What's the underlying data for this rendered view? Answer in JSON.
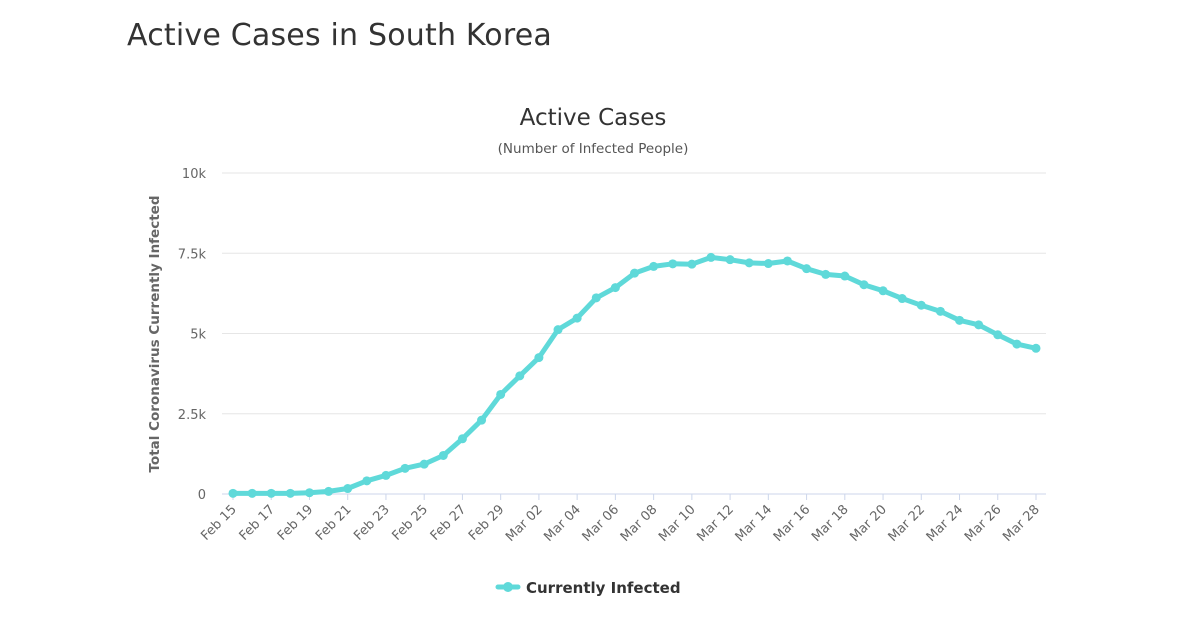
{
  "page": {
    "title": "Active Cases in South Korea"
  },
  "colors": {
    "series": "#5fd9d9",
    "grid": "#e6e6e6",
    "axis": "#ccd6eb"
  },
  "chart_data": {
    "type": "line",
    "title": "Active Cases",
    "subtitle": "(Number of Infected People)",
    "xlabel": "",
    "ylabel": "Total Coronavirus Currently Infected",
    "ylim": [
      0,
      10000
    ],
    "yticks": [
      {
        "value": 0,
        "label": "0"
      },
      {
        "value": 2500,
        "label": "2.5k"
      },
      {
        "value": 5000,
        "label": "5k"
      },
      {
        "value": 7500,
        "label": "7.5k"
      },
      {
        "value": 10000,
        "label": "10k"
      }
    ],
    "categories": [
      "Feb 15",
      "Feb 16",
      "Feb 17",
      "Feb 18",
      "Feb 19",
      "Feb 20",
      "Feb 21",
      "Feb 22",
      "Feb 23",
      "Feb 24",
      "Feb 25",
      "Feb 26",
      "Feb 27",
      "Feb 28",
      "Feb 29",
      "Mar 01",
      "Mar 02",
      "Mar 03",
      "Mar 04",
      "Mar 05",
      "Mar 06",
      "Mar 07",
      "Mar 08",
      "Mar 09",
      "Mar 10",
      "Mar 11",
      "Mar 12",
      "Mar 13",
      "Mar 14",
      "Mar 15",
      "Mar 16",
      "Mar 17",
      "Mar 18",
      "Mar 19",
      "Mar 20",
      "Mar 21",
      "Mar 22",
      "Mar 23",
      "Mar 24",
      "Mar 25",
      "Mar 26",
      "Mar 27",
      "Mar 28"
    ],
    "xtick_labels": [
      "Feb 15",
      "Feb 17",
      "Feb 19",
      "Feb 21",
      "Feb 23",
      "Feb 25",
      "Feb 27",
      "Feb 29",
      "Mar 02",
      "Mar 04",
      "Mar 06",
      "Mar 08",
      "Mar 10",
      "Mar 12",
      "Mar 14",
      "Mar 16",
      "Mar 18",
      "Mar 20",
      "Mar 22",
      "Mar 24",
      "Mar 26",
      "Mar 28"
    ],
    "series": [
      {
        "name": "Currently Infected",
        "values": [
          20,
          20,
          20,
          20,
          40,
          80,
          170,
          410,
          580,
          800,
          930,
          1200,
          1720,
          2300,
          3100,
          3680,
          4250,
          5120,
          5480,
          6110,
          6430,
          6880,
          7090,
          7170,
          7160,
          7370,
          7300,
          7200,
          7180,
          7260,
          7020,
          6840,
          6790,
          6520,
          6330,
          6090,
          5880,
          5690,
          5410,
          5270,
          4960,
          4670,
          4540
        ]
      }
    ],
    "legend": {
      "position": "bottom-center",
      "label": "Currently Infected"
    }
  }
}
